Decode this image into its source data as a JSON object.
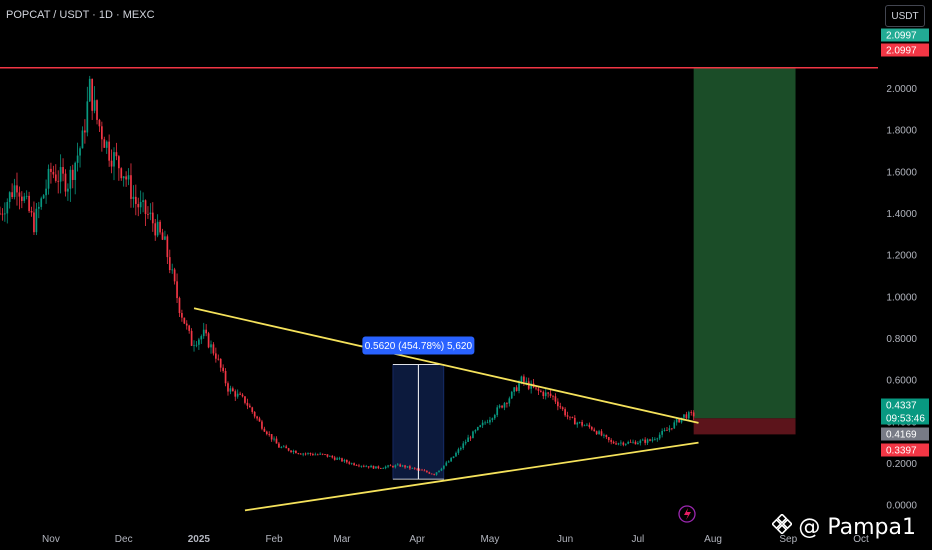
{
  "header": {
    "symbol_line": "POPCAT / USDT · 1D · MEXC",
    "currency_button": "USDT"
  },
  "watermark": {
    "text": "@ Pampa1"
  },
  "chart_data": {
    "type": "candlestick",
    "title": "POPCAT / USDT · 1D · MEXC",
    "xlabel": "",
    "ylabel": "",
    "ylim": [
      -0.1,
      2.3
    ],
    "y_ticks": [
      0.0,
      0.2,
      0.4,
      0.6,
      0.8,
      1.0,
      1.2,
      1.4,
      1.6,
      1.8,
      2.0
    ],
    "y_tick_labels": [
      "0.0000",
      "0.2000",
      "0.4000",
      "0.6000",
      "0.8000",
      "1.0000",
      "1.2000",
      "1.4000",
      "1.6000",
      "1.8000",
      "2.0000"
    ],
    "x_ticks": [
      {
        "label": "Nov",
        "date": "2024-11-01"
      },
      {
        "label": "Dec",
        "date": "2024-12-01"
      },
      {
        "label": "2025",
        "date": "2025-01-01"
      },
      {
        "label": "Feb",
        "date": "2025-02-01"
      },
      {
        "label": "Mar",
        "date": "2025-03-01"
      },
      {
        "label": "Apr",
        "date": "2025-04-01"
      },
      {
        "label": "May",
        "date": "2025-05-01"
      },
      {
        "label": "Jun",
        "date": "2025-06-01"
      },
      {
        "label": "Jul",
        "date": "2025-07-01"
      },
      {
        "label": "Aug",
        "date": "2025-08-01"
      },
      {
        "label": "Sep",
        "date": "2025-09-01"
      },
      {
        "label": "Oct",
        "date": "2025-10-01"
      }
    ],
    "xlim": [
      "2024-10-11",
      "2025-10-08"
    ],
    "price_path": [
      [
        "2024-10-11",
        1.4
      ],
      [
        "2024-10-18",
        1.55
      ],
      [
        "2024-10-25",
        1.35
      ],
      [
        "2024-11-01",
        1.6
      ],
      [
        "2024-11-08",
        1.55
      ],
      [
        "2024-11-14",
        1.75
      ],
      [
        "2024-11-17",
        2.0
      ],
      [
        "2024-11-20",
        1.85
      ],
      [
        "2024-11-25",
        1.7
      ],
      [
        "2024-12-01",
        1.6
      ],
      [
        "2024-12-06",
        1.45
      ],
      [
        "2024-12-12",
        1.38
      ],
      [
        "2024-12-18",
        1.25
      ],
      [
        "2024-12-24",
        0.95
      ],
      [
        "2024-12-29",
        0.78
      ],
      [
        "2025-01-03",
        0.82
      ],
      [
        "2025-01-08",
        0.72
      ],
      [
        "2025-01-13",
        0.56
      ],
      [
        "2025-01-20",
        0.5
      ],
      [
        "2025-01-27",
        0.38
      ],
      [
        "2025-02-03",
        0.28
      ],
      [
        "2025-02-12",
        0.25
      ],
      [
        "2025-02-22",
        0.24
      ],
      [
        "2025-03-05",
        0.2
      ],
      [
        "2025-03-15",
        0.18
      ],
      [
        "2025-03-25",
        0.19
      ],
      [
        "2025-04-01",
        0.17
      ],
      [
        "2025-04-08",
        0.15
      ],
      [
        "2025-04-15",
        0.22
      ],
      [
        "2025-04-22",
        0.32
      ],
      [
        "2025-05-01",
        0.42
      ],
      [
        "2025-05-10",
        0.53
      ],
      [
        "2025-05-14",
        0.6
      ],
      [
        "2025-05-20",
        0.55
      ],
      [
        "2025-05-27",
        0.52
      ],
      [
        "2025-06-03",
        0.41
      ],
      [
        "2025-06-12",
        0.37
      ],
      [
        "2025-06-20",
        0.3
      ],
      [
        "2025-06-28",
        0.3
      ],
      [
        "2025-07-06",
        0.31
      ],
      [
        "2025-07-13",
        0.36
      ],
      [
        "2025-07-20",
        0.43
      ],
      [
        "2025-07-24",
        0.4337
      ]
    ],
    "price_label_values": [
      2.0997,
      2.0997,
      0.4337,
      0.4169,
      0.3397
    ],
    "price_labels": [
      {
        "text": "2.0997",
        "value": 2.0997,
        "color": "#22ab94"
      },
      {
        "text": "2.0997",
        "value": 2.0997,
        "color": "#f23645"
      },
      {
        "text": "0.4337",
        "value": 0.4337,
        "color": "#089981"
      },
      {
        "text": "09:53:46",
        "value": 0.4337,
        "color": "#089981"
      },
      {
        "text": "0.4169",
        "value": 0.4169,
        "color": "#787b86"
      },
      {
        "text": "0.3397",
        "value": 0.3397,
        "color": "#f23645"
      }
    ],
    "horizontal_line": {
      "value": 2.0997,
      "color": "#f23645"
    },
    "trendlines": [
      {
        "name": "upper",
        "from": [
          "2024-12-30",
          0.945
        ],
        "to": [
          "2025-07-26",
          0.395
        ],
        "color": "#f5e25b"
      },
      {
        "name": "lower",
        "from": [
          "2025-01-20",
          -0.025
        ],
        "to": [
          "2025-07-26",
          0.3
        ],
        "color": "#f5e25b"
      }
    ],
    "measure_box": {
      "from": [
        "2025-03-22",
        0.125
      ],
      "to": [
        "2025-04-12",
        0.675
      ],
      "label": "0.5620 (454.78%) 5,620"
    },
    "position": {
      "start": "2025-07-24",
      "end": "2025-09-04",
      "entry": 0.4169,
      "target": 2.0997,
      "stop": 0.3397
    },
    "colors": {
      "up": "#089981",
      "down": "#f23645",
      "trend": "#f5e25b",
      "target_zone": "#1b4d28",
      "stop_zone": "#5c141b",
      "measure": "#2962ff"
    }
  }
}
